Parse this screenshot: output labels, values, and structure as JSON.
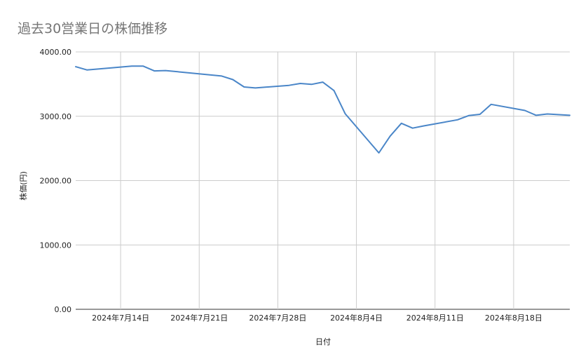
{
  "chart_data": {
    "type": "line",
    "title": "過去30営業日の株価推移",
    "xlabel": "日付",
    "ylabel": "株価(円)",
    "ylim": [
      0,
      4000
    ],
    "y_ticks": [
      "0.00",
      "1000.00",
      "2000.00",
      "3000.00",
      "4000.00"
    ],
    "x_ticks": [
      {
        "date": "2024-07-14",
        "label": "2024年7月14日"
      },
      {
        "date": "2024-07-21",
        "label": "2024年7月21日"
      },
      {
        "date": "2024-07-28",
        "label": "2024年7月28日"
      },
      {
        "date": "2024-08-04",
        "label": "2024年8月4日"
      },
      {
        "date": "2024-08-11",
        "label": "2024年8月11日"
      },
      {
        "date": "2024-08-18",
        "label": "2024年8月18日"
      }
    ],
    "xlim": [
      "2024-07-10",
      "2024-08-23"
    ],
    "grid": true,
    "series": [
      {
        "color": "#4a86c8",
        "points": [
          {
            "x": "2024-07-10",
            "y": 3770
          },
          {
            "x": "2024-07-11",
            "y": 3720
          },
          {
            "x": "2024-07-15",
            "y": 3780
          },
          {
            "x": "2024-07-16",
            "y": 3780
          },
          {
            "x": "2024-07-17",
            "y": 3705
          },
          {
            "x": "2024-07-18",
            "y": 3710
          },
          {
            "x": "2024-07-23",
            "y": 3625
          },
          {
            "x": "2024-07-24",
            "y": 3570
          },
          {
            "x": "2024-07-25",
            "y": 3455
          },
          {
            "x": "2024-07-26",
            "y": 3440
          },
          {
            "x": "2024-07-29",
            "y": 3480
          },
          {
            "x": "2024-07-30",
            "y": 3510
          },
          {
            "x": "2024-07-31",
            "y": 3495
          },
          {
            "x": "2024-08-01",
            "y": 3530
          },
          {
            "x": "2024-08-02",
            "y": 3400
          },
          {
            "x": "2024-08-03",
            "y": 3040
          },
          {
            "x": "2024-08-06",
            "y": 2430
          },
          {
            "x": "2024-08-07",
            "y": 2690
          },
          {
            "x": "2024-08-08",
            "y": 2890
          },
          {
            "x": "2024-08-09",
            "y": 2815
          },
          {
            "x": "2024-08-10",
            "y": 2850
          },
          {
            "x": "2024-08-13",
            "y": 2945
          },
          {
            "x": "2024-08-14",
            "y": 3010
          },
          {
            "x": "2024-08-15",
            "y": 3030
          },
          {
            "x": "2024-08-16",
            "y": 3185
          },
          {
            "x": "2024-08-19",
            "y": 3090
          },
          {
            "x": "2024-08-20",
            "y": 3015
          },
          {
            "x": "2024-08-21",
            "y": 3035
          },
          {
            "x": "2024-08-23",
            "y": 3015
          }
        ]
      }
    ]
  }
}
